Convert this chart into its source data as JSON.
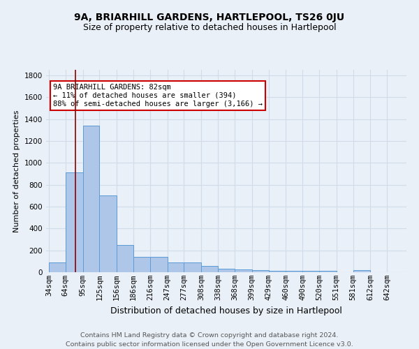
{
  "title1": "9A, BRIARHILL GARDENS, HARTLEPOOL, TS26 0JU",
  "title2": "Size of property relative to detached houses in Hartlepool",
  "xlabel": "Distribution of detached houses by size in Hartlepool",
  "ylabel": "Number of detached properties",
  "footer1": "Contains HM Land Registry data © Crown copyright and database right 2024.",
  "footer2": "Contains public sector information licensed under the Open Government Licence v3.0.",
  "bin_labels": [
    "34sqm",
    "64sqm",
    "95sqm",
    "125sqm",
    "156sqm",
    "186sqm",
    "216sqm",
    "247sqm",
    "277sqm",
    "308sqm",
    "338sqm",
    "368sqm",
    "399sqm",
    "429sqm",
    "460sqm",
    "490sqm",
    "520sqm",
    "551sqm",
    "581sqm",
    "612sqm",
    "642sqm"
  ],
  "bin_edges": [
    34,
    64,
    95,
    125,
    156,
    186,
    216,
    247,
    277,
    308,
    338,
    368,
    399,
    429,
    460,
    490,
    520,
    551,
    581,
    612,
    642,
    672
  ],
  "bar_heights": [
    90,
    910,
    1340,
    700,
    250,
    140,
    140,
    90,
    90,
    55,
    30,
    25,
    20,
    15,
    15,
    15,
    15,
    0,
    20,
    0,
    0
  ],
  "bar_color": "#aec6e8",
  "bar_edge_color": "#5b9bd5",
  "property_size": 82,
  "vline_color": "#8b0000",
  "annotation_text": "9A BRIARHILL GARDENS: 82sqm\n← 11% of detached houses are smaller (394)\n88% of semi-detached houses are larger (3,166) →",
  "annotation_box_color": "#ffffff",
  "annotation_box_edge_color": "#cc0000",
  "ylim": [
    0,
    1850
  ],
  "yticks": [
    0,
    200,
    400,
    600,
    800,
    1000,
    1200,
    1400,
    1600,
    1800
  ],
  "bg_color": "#eaf0f8",
  "plot_bg_color": "#eaf0f8",
  "grid_color": "#d0dce8",
  "title1_fontsize": 10,
  "title2_fontsize": 9,
  "xlabel_fontsize": 9,
  "ylabel_fontsize": 8,
  "annotation_fontsize": 7.5,
  "footer_fontsize": 6.8,
  "tick_fontsize": 7.5
}
